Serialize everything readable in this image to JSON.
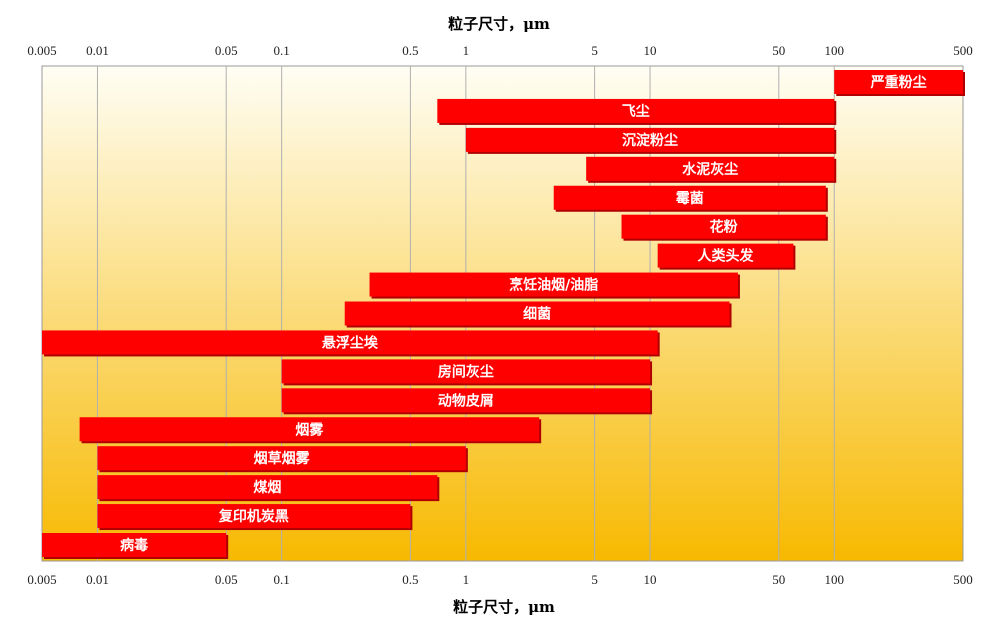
{
  "chart_data": {
    "type": "bar",
    "orientation": "horizontal",
    "title": "粒子尺寸，μm",
    "xlabel": "粒子尺寸，μm",
    "xscale": "log",
    "xlim": [
      0.005,
      500
    ],
    "ticks": [
      {
        "value": 0.005,
        "label": "0.005"
      },
      {
        "value": 0.01,
        "label": "0.01"
      },
      {
        "value": 0.05,
        "label": "0.05"
      },
      {
        "value": 0.1,
        "label": "0.1"
      },
      {
        "value": 0.5,
        "label": "0.5"
      },
      {
        "value": 1,
        "label": "1"
      },
      {
        "value": 5,
        "label": "5"
      },
      {
        "value": 10,
        "label": "10"
      },
      {
        "value": 50,
        "label": "50"
      },
      {
        "value": 100,
        "label": "100"
      },
      {
        "value": 500,
        "label": "500"
      }
    ],
    "grid": true,
    "background_gradient": [
      "#fffef5",
      "#f7b900"
    ],
    "bar_color": "#ff0000",
    "bars": [
      {
        "label": "严重粉尘",
        "start": 100,
        "end": 500
      },
      {
        "label": "飞尘",
        "start": 0.7,
        "end": 100
      },
      {
        "label": "沉淀粉尘",
        "start": 1,
        "end": 100
      },
      {
        "label": "水泥灰尘",
        "start": 4.5,
        "end": 100
      },
      {
        "label": "霉菌",
        "start": 3,
        "end": 90
      },
      {
        "label": "花粉",
        "start": 7,
        "end": 90
      },
      {
        "label": "人类头发",
        "start": 11,
        "end": 60
      },
      {
        "label": "烹饪油烟/油脂",
        "start": 0.3,
        "end": 30
      },
      {
        "label": "细菌",
        "start": 0.22,
        "end": 27
      },
      {
        "label": "悬浮尘埃",
        "start": 0.005,
        "end": 11
      },
      {
        "label": "房间灰尘",
        "start": 0.1,
        "end": 10
      },
      {
        "label": "动物皮屑",
        "start": 0.1,
        "end": 10
      },
      {
        "label": "烟雾",
        "start": 0.008,
        "end": 2.5
      },
      {
        "label": "烟草烟雾",
        "start": 0.01,
        "end": 1
      },
      {
        "label": "煤烟",
        "start": 0.01,
        "end": 0.7
      },
      {
        "label": "复印机炭黑",
        "start": 0.01,
        "end": 0.5
      },
      {
        "label": "病毒",
        "start": 0.005,
        "end": 0.05
      }
    ]
  }
}
